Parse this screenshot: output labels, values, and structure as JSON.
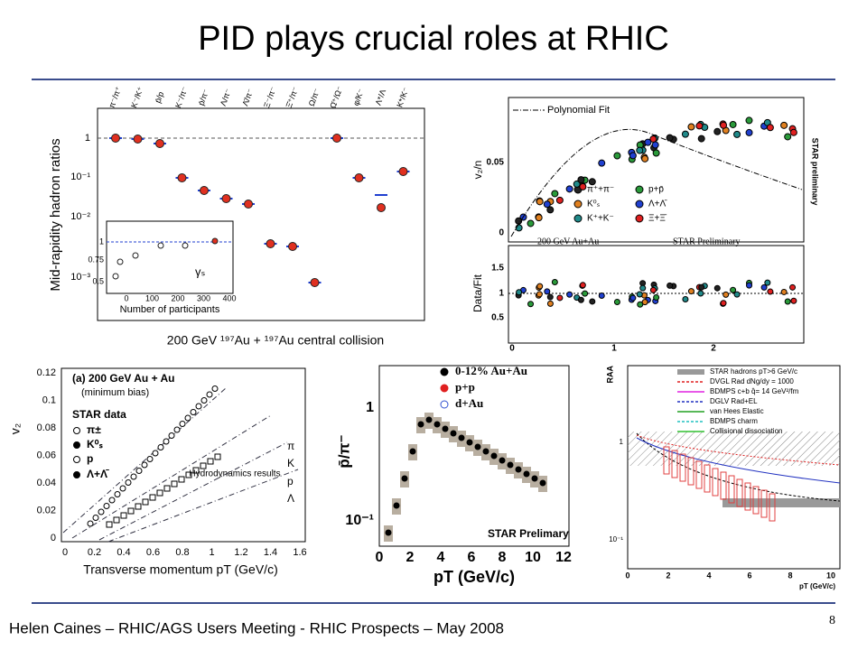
{
  "title": "PID plays crucial roles at RHIC",
  "footer": "Helen Caines – RHIC/AGS Users Meeting -  RHIC Prospects – May 2008",
  "page_number": "8",
  "panel_ratios": {
    "categories": [
      "π⁻/π⁺",
      "K⁻/K⁺",
      "p̄/p",
      "K⁻/π⁻",
      "p̄/π⁻",
      "Λ/π⁻",
      "Λ̄/π⁻",
      "Ξ⁻/π⁻",
      "Ξ̄⁺/π⁻",
      "Ω/π⁻",
      "Ω̄⁺/Ω⁻",
      "φ/K⁻",
      "Λ*/Λ",
      "K*/K⁻"
    ],
    "y_label": "Mid-rapidity hadron ratios",
    "yticks": [
      "1",
      "10⁻¹",
      "10⁻²",
      "10⁻³"
    ],
    "x_caption": "200 GeV ¹⁹⁷Au + ¹⁹⁷Au central collision",
    "inset": {
      "x_label": "Number of participants",
      "xticks": [
        "0",
        "100",
        "200",
        "300",
        "400"
      ],
      "yticks": [
        "0.5",
        "0.75",
        "1"
      ],
      "symbol": "γₛ"
    }
  },
  "panel_v2n": {
    "fit_label": "Polynomial Fit",
    "y_label_top": "v₂/n",
    "y_label_bottom": "Data/Fit",
    "yticks_top": [
      "0.05",
      "0"
    ],
    "yticks_bottom": [
      "1.5",
      "1",
      "0.5"
    ],
    "xticks": [
      "0",
      "1",
      "2"
    ],
    "legend": [
      "π⁺+π⁻",
      "p+p̄",
      "K⁰ₛ",
      "Λ+Λ̄",
      "K⁺+K⁻",
      "Ξ+Ξ̄"
    ],
    "note_left": "200 GeV Au+Au",
    "note_right": "STAR Preliminary",
    "side_label": "STAR preliminary"
  },
  "panel_v2": {
    "header": "(a) 200 GeV Au + Au",
    "subheader": "(minimum bias)",
    "data_label": "STAR data",
    "legend": [
      "π±",
      "K⁰ₛ",
      "p",
      "Λ+Λ̄"
    ],
    "hydro_labels": [
      "π",
      "K",
      "p",
      "Λ"
    ],
    "hydro_note": "Hydrodynamics results",
    "y_label": "v₂",
    "yticks": [
      "0.12",
      "0.1",
      "0.08",
      "0.06",
      "0.04",
      "0.02",
      "0"
    ],
    "xticks": [
      "0",
      "0.2",
      "0.4",
      "0.6",
      "0.8",
      "1",
      "1.2",
      "1.4",
      "1.6"
    ],
    "x_label": "Transverse momentum pT (GeV/c)"
  },
  "panel_pbar": {
    "y_label": "p̄/π⁻",
    "yticks": [
      "1",
      "10⁻¹"
    ],
    "legend": [
      "0-12% Au+Au",
      "p+p",
      "d+Au"
    ],
    "note": "STAR Prelimary",
    "xticks": [
      "0",
      "2",
      "4",
      "6",
      "8",
      "10",
      "12"
    ],
    "x_label": "pT (GeV/c)"
  },
  "panel_raa": {
    "y_label": "RAA",
    "yticks": [
      "1",
      "10⁻¹"
    ],
    "legend": [
      "STAR hadrons pT>6 GeV/c",
      "DVGL Rad dNg/dy = 1000",
      "BDMPS c+b q̂= 14 GeV²/fm",
      "DGLV Rad+EL",
      "van Hees Elastic",
      "BDMPS charm",
      "Collisional dissociation"
    ],
    "xticks": [
      "0",
      "2",
      "4",
      "6",
      "8",
      "10"
    ],
    "x_label": "pT (GeV/c)"
  }
}
